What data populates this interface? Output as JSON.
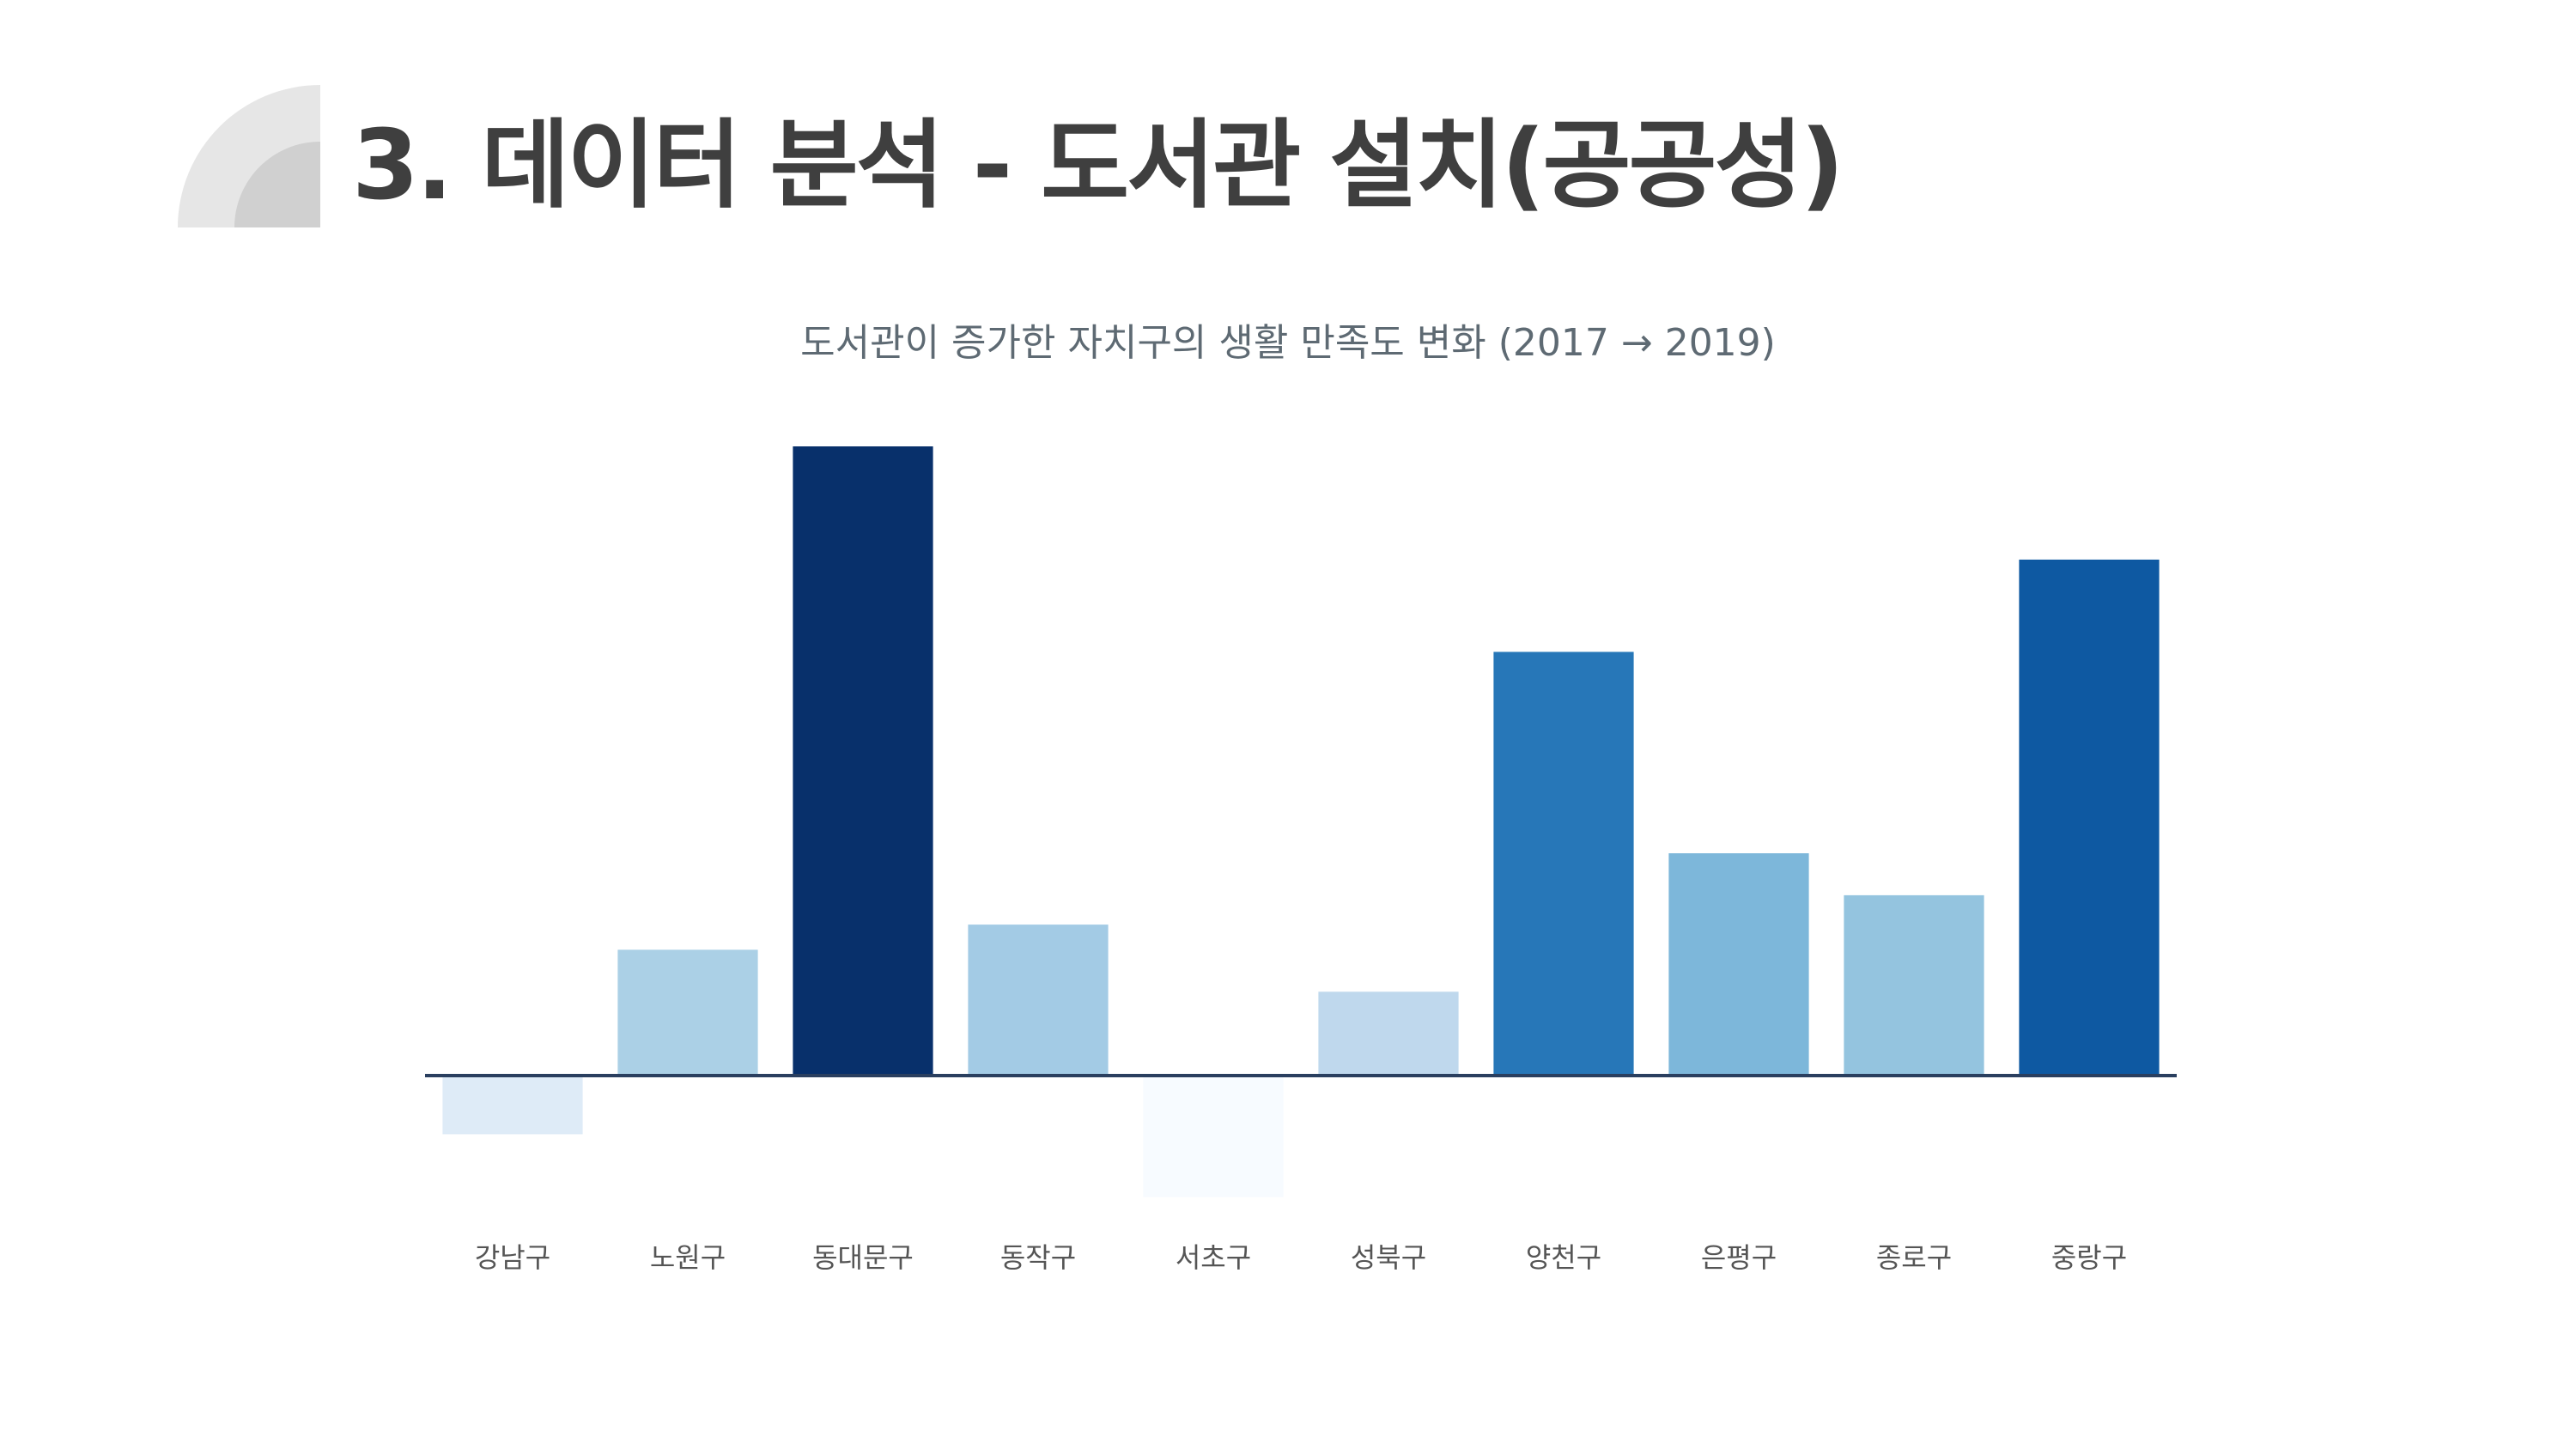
{
  "slide": {
    "title": "3. 데이터 분석 - 도서관 설치(공공성)"
  },
  "chart_data": {
    "type": "bar",
    "title": "도서관이 증가한 자치구의 생활 만족도 변화 (2017 → 2019)",
    "xlabel": "",
    "ylabel": "",
    "categories": [
      "강남구",
      "노원구",
      "동대문구",
      "동작구",
      "서초구",
      "성북구",
      "양천구",
      "은평구",
      "종로구",
      "중랑구"
    ],
    "values": [
      -0.14,
      0.3,
      1.5,
      0.36,
      -0.29,
      0.2,
      1.01,
      0.53,
      0.43,
      1.23
    ],
    "colors": [
      "#deebf7",
      "#abd0e6",
      "#08306b",
      "#a3cbe5",
      "#f7fbff",
      "#bfd8ed",
      "#2777b8",
      "#7db7da",
      "#94c4df",
      "#0e59a2"
    ],
    "ylim": [
      -0.35,
      1.6
    ],
    "grid": false,
    "legend": "none",
    "baseline_color": "#2a3f5f"
  }
}
